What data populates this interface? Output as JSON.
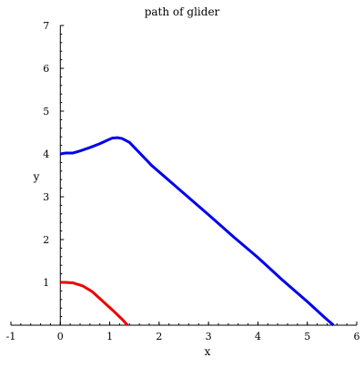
{
  "chart_data": {
    "type": "line",
    "title": "path of glider",
    "xlabel": "x",
    "ylabel": "y",
    "xlim": [
      -1,
      6
    ],
    "ylim": [
      0,
      7
    ],
    "x_ticks": [
      "-1",
      "0",
      "1",
      "2",
      "3",
      "4",
      "5",
      "6"
    ],
    "y_ticks": [
      "1",
      "2",
      "3",
      "4",
      "5",
      "6",
      "7"
    ],
    "grid": false,
    "legend": "none",
    "series": [
      {
        "color": "#0000ee",
        "points": [
          [
            0.0,
            4.0
          ],
          [
            0.1,
            4.02
          ],
          [
            0.25,
            4.02
          ],
          [
            0.4,
            4.07
          ],
          [
            0.6,
            4.15
          ],
          [
            0.8,
            4.24
          ],
          [
            0.95,
            4.32
          ],
          [
            1.05,
            4.37
          ],
          [
            1.15,
            4.38
          ],
          [
            1.25,
            4.36
          ],
          [
            1.4,
            4.27
          ],
          [
            1.6,
            4.03
          ],
          [
            1.85,
            3.73
          ],
          [
            2.1,
            3.48
          ],
          [
            2.5,
            3.08
          ],
          [
            3.0,
            2.58
          ],
          [
            3.5,
            2.07
          ],
          [
            4.0,
            1.58
          ],
          [
            4.5,
            1.05
          ],
          [
            5.0,
            0.55
          ],
          [
            5.35,
            0.18
          ],
          [
            5.53,
            0.0
          ]
        ]
      },
      {
        "color": "#ee0000",
        "points": [
          [
            0.0,
            1.0
          ],
          [
            0.1,
            1.0
          ],
          [
            0.25,
            0.99
          ],
          [
            0.45,
            0.92
          ],
          [
            0.65,
            0.78
          ],
          [
            0.85,
            0.57
          ],
          [
            1.05,
            0.36
          ],
          [
            1.25,
            0.14
          ],
          [
            1.36,
            0.0
          ]
        ]
      }
    ]
  }
}
